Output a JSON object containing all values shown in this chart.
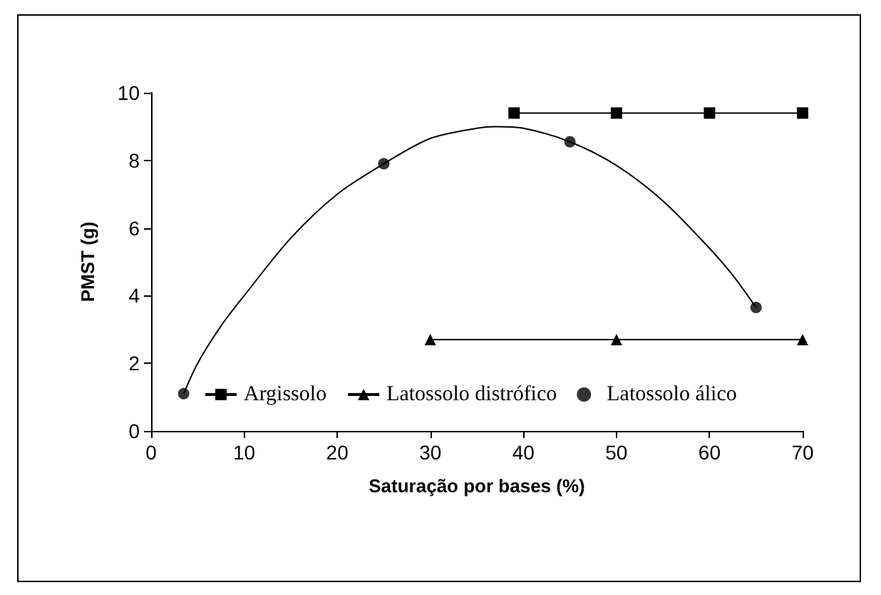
{
  "chart_data": {
    "type": "scatter",
    "xlabel": "Saturação por bases (%)",
    "ylabel": "PMST (g)",
    "xlim": [
      0,
      70
    ],
    "xticks": [
      0,
      10,
      20,
      30,
      40,
      50,
      60,
      70
    ],
    "ylim": [
      0,
      10
    ],
    "yticks": [
      0,
      2,
      4,
      6,
      8,
      10
    ],
    "grid": false,
    "legend": "bottom",
    "series": [
      {
        "name": "Argissolo",
        "type": "line",
        "marker": "square",
        "color": "#000000",
        "x": [
          39,
          50,
          60,
          70
        ],
        "values": [
          9.4,
          9.4,
          9.4,
          9.4
        ]
      },
      {
        "name": "Latossolo distrófico",
        "type": "line",
        "marker": "triangle",
        "color": "#000000",
        "x": [
          30,
          50,
          70
        ],
        "values": [
          2.7,
          2.7,
          2.7
        ]
      },
      {
        "name": "Latossolo álico",
        "marker": "circle",
        "color": "#000000",
        "x": [
          3.5,
          25,
          45,
          65
        ],
        "values": [
          1.1,
          7.9,
          8.55,
          3.65
        ]
      },
      {
        "type": "line",
        "marker": "none",
        "color": "#000000",
        "x": [
          3.5,
          5,
          7.5,
          10,
          15,
          20,
          25,
          30,
          35,
          37,
          40,
          45,
          50,
          55,
          60,
          62.5,
          65
        ],
        "values": [
          1.1,
          2.0,
          3.1,
          4.0,
          5.7,
          7.0,
          7.9,
          8.65,
          8.95,
          9.0,
          8.95,
          8.55,
          7.85,
          6.8,
          5.4,
          4.6,
          3.65
        ]
      }
    ]
  }
}
